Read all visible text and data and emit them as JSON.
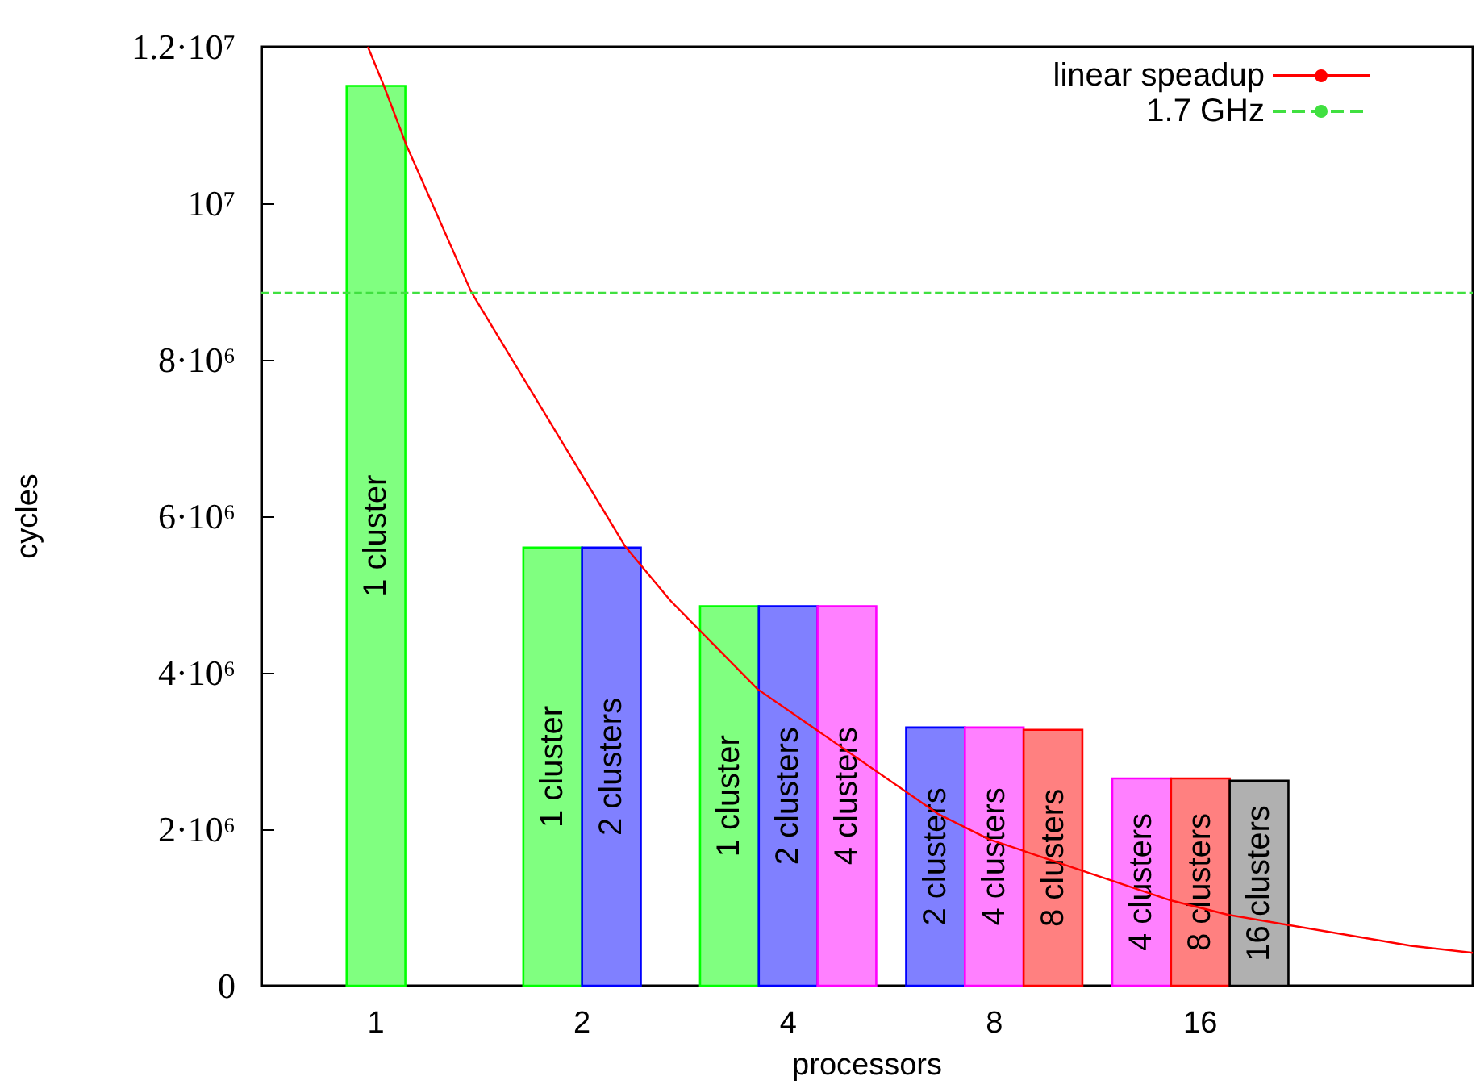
{
  "chart_data": {
    "type": "bar",
    "xlabel": "processors",
    "ylabel": "cycles",
    "x": [
      1,
      2,
      4,
      8,
      16
    ],
    "log": "x",
    "xlim": [
      0.68,
      40
    ],
    "xticks": [
      1,
      2,
      4,
      8,
      16
    ],
    "ylim": [
      0,
      12000000
    ],
    "yticks": [
      {
        "value": 0,
        "label": "0"
      },
      {
        "value": 2000000,
        "label": "2·10⁶"
      },
      {
        "value": 4000000,
        "label": "4·10⁶"
      },
      {
        "value": 6000000,
        "label": "6·10⁶"
      },
      {
        "value": 8000000,
        "label": "8·10⁶"
      },
      {
        "value": 10000000,
        "label": "10⁷"
      },
      {
        "value": 12000000,
        "label": "1.2·10⁷"
      }
    ],
    "grid": false,
    "legend": "top right",
    "series": [
      {
        "name": "1 cluster",
        "color": "#80ff80",
        "values": [
          11500000,
          5600000,
          4850000,
          null,
          null
        ]
      },
      {
        "name": "2 clusters",
        "color": "#8080ff",
        "values": [
          null,
          5600000,
          4850000,
          3300000,
          null
        ]
      },
      {
        "name": "4 clusters",
        "color": "#ff80ff",
        "values": [
          null,
          null,
          4850000,
          3300000,
          2650000
        ]
      },
      {
        "name": "8 clusters",
        "color": "#ff8080",
        "values": [
          null,
          null,
          null,
          3270000,
          2650000
        ]
      },
      {
        "name": "16 clusters",
        "color": "#b0b0b0",
        "values": [
          null,
          null,
          null,
          null,
          2620000
        ]
      },
      {
        "name": "linear speadup",
        "type": "line",
        "color": "#ff0000",
        "marker": "none",
        "x": [
          0.973,
          1.027,
          1.108,
          1.377,
          2.314,
          2.693,
          3.61,
          6.61,
          7.87,
          14.5,
          17.6,
          32.5,
          40
        ],
        "values": [
          12000000,
          11500000,
          10740000,
          8870000,
          5610000,
          4920000,
          3790000,
          2200000,
          1870000,
          1090000,
          905000,
          510000,
          420000
        ]
      }
    ],
    "ref_lines": [
      {
        "axis": "y",
        "value": 8870000,
        "label": "1.7 GHz",
        "color": "#40e040",
        "line_style": "dashed"
      }
    ]
  }
}
